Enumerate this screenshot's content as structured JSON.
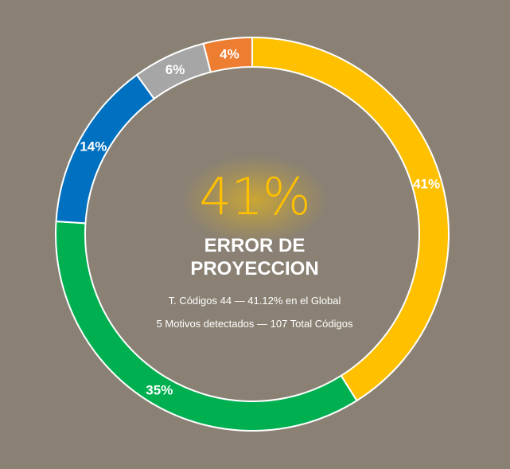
{
  "chart_data": {
    "type": "pie",
    "style": "donut",
    "slices": [
      {
        "label": "41%",
        "value": 41.12,
        "color": "#ffc000"
      },
      {
        "label": "35%",
        "value": 35,
        "color": "#00b050"
      },
      {
        "label": "14%",
        "value": 14,
        "color": "#0070c0"
      },
      {
        "label": "6%",
        "value": 6,
        "color": "#a6a6a6"
      },
      {
        "label": "4%",
        "value": 4,
        "color": "#ed7d31"
      }
    ]
  },
  "center": {
    "percentage": "41%",
    "title_line1": "ERROR DE",
    "title_line2": "PROYECCION",
    "subtitle1": "T. Códigos 44 — 41.12% en el Global",
    "subtitle2": "5 Motivos detectados — 107 Total Códigos"
  },
  "colors": {
    "background": "#8a8174",
    "accent": "#ffc000",
    "separator": "#ffffff"
  }
}
